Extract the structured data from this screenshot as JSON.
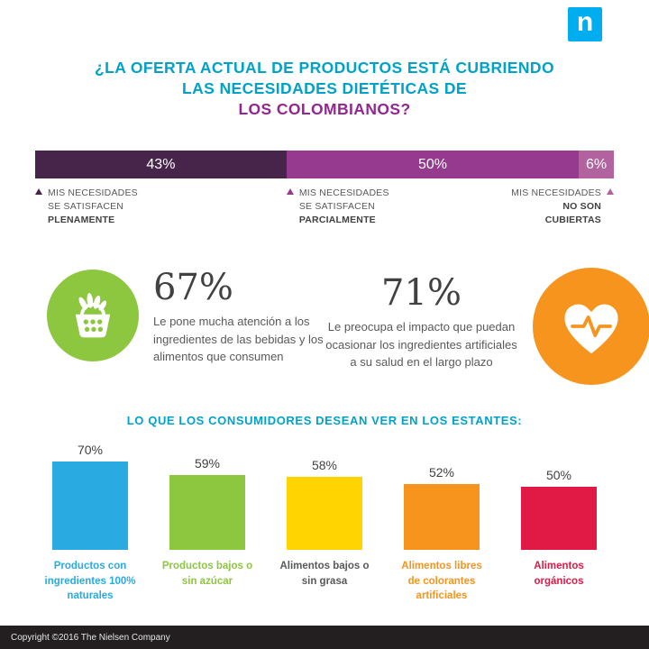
{
  "logo": {
    "letter": "n",
    "color": "#00aeef"
  },
  "title": {
    "line1": "¿LA OFERTA ACTUAL DE PRODUCTOS ESTÁ CUBRIENDO",
    "line2": "LAS NECESIDADES DIETÉTICAS DE",
    "line3": "LOS COLOMBIANOS?",
    "color_main": "#00a3c7",
    "color_accent": "#93278f"
  },
  "satisfaction": {
    "segments": [
      {
        "value_label": "43%",
        "pct": 43,
        "color": "#47254b",
        "label_normal": "MIS NECESIDADES\nSE SATISFACEN",
        "label_bold": "PLENAMENTE"
      },
      {
        "value_label": "50%",
        "pct": 50,
        "color": "#963a90",
        "label_normal": "MIS NECESIDADES\nSE SATISFACEN",
        "label_bold": "PARCIALMENTE"
      },
      {
        "value_label": "6%",
        "pct": 6,
        "color": "#b2639f",
        "label_normal": "MIS NECESIDADES",
        "label_bold": "NO SON\nCUBIERTAS"
      }
    ]
  },
  "stats": [
    {
      "value": "67%",
      "text": "Le pone mucha atención a los ingredientes de las bebidas y los alimentos que consumen",
      "icon": "basket-icon",
      "circle_color": "#8dc63f"
    },
    {
      "value": "71%",
      "text": "Le preocupa el impacto que puedan ocasionar los ingredientes artificiales a su salud en el largo plazo",
      "icon": "heart-pulse-icon",
      "circle_color": "#f7941d"
    }
  ],
  "shelf": {
    "heading": "LO QUE LOS CONSUMIDORES DESEAN VER EN LOS ESTANTES:",
    "items": [
      {
        "value_label": "70%",
        "pct": 70,
        "color": "#29abe2",
        "label": "Productos con ingredientes 100% naturales",
        "label_color": "#29abe2"
      },
      {
        "value_label": "59%",
        "pct": 59,
        "color": "#8dc63f",
        "label": "Productos bajos o sin azúcar",
        "label_color": "#8dc63f"
      },
      {
        "value_label": "58%",
        "pct": 58,
        "color": "#ffd400",
        "label": "Alimentos bajos o sin grasa",
        "label_color": "#58595b"
      },
      {
        "value_label": "52%",
        "pct": 52,
        "color": "#f7941d",
        "label": "Alimentos libres de colorantes artificiales",
        "label_color": "#f7941d"
      },
      {
        "value_label": "50%",
        "pct": 50,
        "color": "#e01a45",
        "label": "Alimentos orgánicos",
        "label_color": "#e01a45"
      }
    ]
  },
  "footer": {
    "text": "Copyright ©2016 The Nielsen Company"
  },
  "chart_data": [
    {
      "type": "bar",
      "subtype": "horizontal-stacked",
      "title": "¿La oferta actual de productos está cubriendo las necesidades dietéticas de los colombianos?",
      "categories": [
        "Mis necesidades se satisfacen plenamente",
        "Mis necesidades se satisfacen parcialmente",
        "Mis necesidades no son cubiertas"
      ],
      "values": [
        43,
        50,
        6
      ],
      "unit": "%",
      "colors": [
        "#47254b",
        "#963a90",
        "#b2639f"
      ],
      "data_labels": true,
      "legend_position": "below"
    },
    {
      "type": "bar",
      "title": "Lo que los consumidores desean ver en los estantes:",
      "categories": [
        "Productos con ingredientes 100% naturales",
        "Productos bajos o sin azúcar",
        "Alimentos bajos o sin grasa",
        "Alimentos libres de colorantes artificiales",
        "Alimentos orgánicos"
      ],
      "values": [
        70,
        59,
        58,
        52,
        50
      ],
      "unit": "%",
      "ylim": [
        0,
        100
      ],
      "grid": false,
      "colors": [
        "#29abe2",
        "#8dc63f",
        "#ffd400",
        "#f7941d",
        "#e01a45"
      ],
      "data_labels": true
    }
  ],
  "standalone_stats": {
    "attention_to_ingredients_pct": 67,
    "worried_artificial_ingredients_pct": 71
  }
}
